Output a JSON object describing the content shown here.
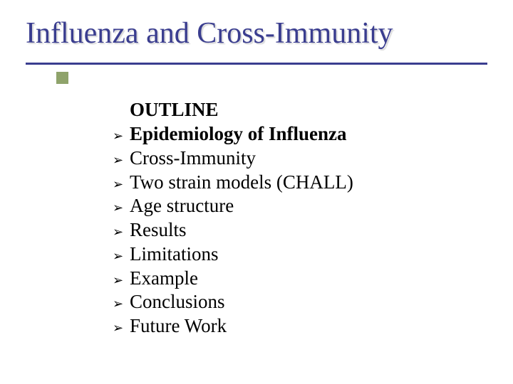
{
  "title": "Influenza and Cross-Immunity",
  "title_color": "#3a3d8f",
  "title_fontsize": 42,
  "accent_color": "#8fa36b",
  "background_color": "#ffffff",
  "outline_label": "OUTLINE",
  "bullet_glyph": "➢",
  "items": [
    {
      "text": "Epidemiology of Influenza",
      "bold": true
    },
    {
      "text": "Cross-Immunity",
      "bold": false
    },
    {
      "text": "Two strain models (CHALL)",
      "bold": false
    },
    {
      "text": "Age structure",
      "bold": false
    },
    {
      "text": "Results",
      "bold": false
    },
    {
      "text": "Limitations",
      "bold": false
    },
    {
      "text": "Example",
      "bold": false
    },
    {
      "text": "Conclusions",
      "bold": false
    },
    {
      "text": "Future Work",
      "bold": false
    }
  ],
  "item_fontsize": 27,
  "item_color": "#000000"
}
